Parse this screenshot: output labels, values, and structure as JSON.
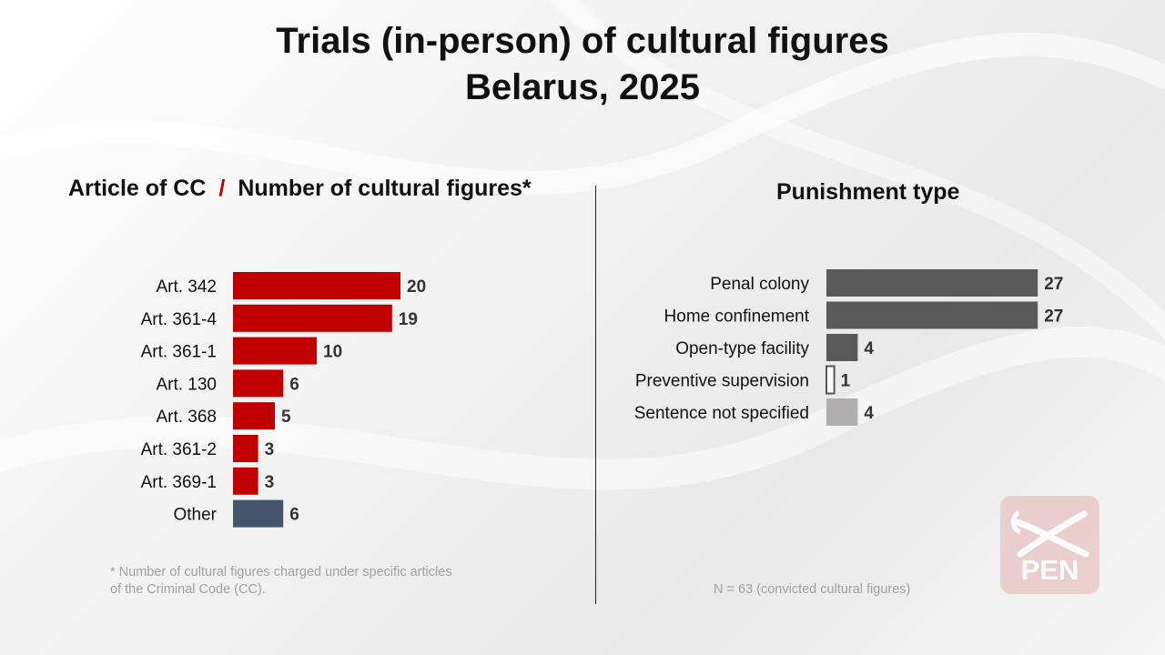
{
  "title_line1": "Trials (in-person) of cultural figures",
  "title_line2": "Belarus, 2025",
  "left_header": {
    "part1": "Article of CC",
    "slash": "/",
    "part2": "Number of cultural figures*"
  },
  "right_header": "Punishment type",
  "footnote": "* Number of cultural figures charged under specific articles of the Criminal Code (CC).",
  "n_note": "N = 63  (convicted cultural figures)",
  "logo_text": "PEN",
  "colors": {
    "red": "#c00000",
    "navy": "#44546a",
    "dark_gray": "#595959",
    "light_gray": "#b0aeae",
    "hollow": "#ffffff"
  },
  "chart_data": [
    {
      "type": "bar",
      "orientation": "horizontal",
      "title": "Article of CC / Number of cultural figures*",
      "categories": [
        "Art. 342",
        "Art. 361-4",
        "Art. 361-1",
        "Art. 130",
        "Art. 368",
        "Art. 361-2",
        "Art. 369-1",
        "Other"
      ],
      "values": [
        20,
        19,
        10,
        6,
        5,
        3,
        3,
        6
      ],
      "bar_colors": [
        "#c00000",
        "#c00000",
        "#c00000",
        "#c00000",
        "#c00000",
        "#c00000",
        "#c00000",
        "#44546a"
      ],
      "data_labels": true
    },
    {
      "type": "bar",
      "orientation": "horizontal",
      "title": "Punishment type",
      "categories": [
        "Penal colony",
        "Home confinement",
        "Open-type facility",
        "Preventive supervision",
        "Sentence not specified"
      ],
      "values": [
        27,
        27,
        4,
        1,
        4
      ],
      "bar_colors": [
        "#595959",
        "#595959",
        "#595959",
        "#ffffff",
        "#b0aeae"
      ],
      "data_labels": true
    }
  ]
}
